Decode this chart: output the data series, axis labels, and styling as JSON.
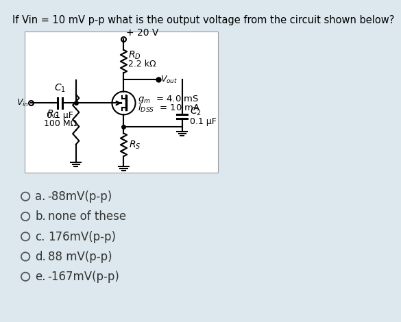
{
  "title": "If Vin = 10 mV p-p what is the output voltage from the circuit shown below?",
  "bg_color": "#dce8ee",
  "circuit_bg": "#ffffff",
  "choices": [
    {
      "letter": "a.",
      "text": "-88mV(p-p)"
    },
    {
      "letter": "b.",
      "text": "none of these"
    },
    {
      "letter": "c.",
      "text": "176mV(p-p)"
    },
    {
      "letter": "d.",
      "text": "88 mV(p-p)"
    },
    {
      "letter": "e.",
      "text": "-167mV(p-p)"
    }
  ],
  "vdd_label": "+ 20 V",
  "rd_label1": "R",
  "rd_label2": "D",
  "rd_value": "2.2 kΩ",
  "vout_label1": "V",
  "vout_label2": "out",
  "gm_label1": "g",
  "gm_label2": "m",
  "gm_value": " = 4.0 mS",
  "idss_label1": "I",
  "idss_label2": "DSS",
  "idss_value": " = 10 mA",
  "rg_label1": "R",
  "rg_label2": "G",
  "rg_value": "100 MΩ",
  "rs_label1": "R",
  "rs_label2": "S",
  "c1_label": "C",
  "c1_sub": "1",
  "c1_value": "0.1 μF",
  "c2_label": "C",
  "c2_sub": "2",
  "c2_value": "0.1 μF",
  "vin_label1": "V",
  "vin_label2": "in"
}
